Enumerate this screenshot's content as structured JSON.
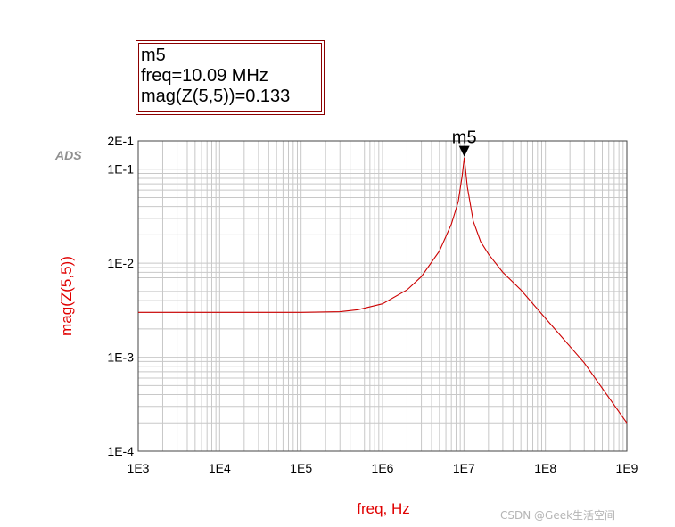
{
  "chart_data": {
    "type": "line",
    "tool_logo": "ADS",
    "xlabel": "freq, Hz",
    "ylabel": "mag(Z(5,5))",
    "x_scale": "log",
    "y_scale": "log",
    "xlim": [
      1000,
      1000000000
    ],
    "ylim": [
      0.0001,
      0.2
    ],
    "grid": true,
    "x_ticks": [
      {
        "value": 1000,
        "label": "1E3"
      },
      {
        "value": 10000,
        "label": "1E4"
      },
      {
        "value": 100000,
        "label": "1E5"
      },
      {
        "value": 1000000,
        "label": "1E6"
      },
      {
        "value": 10000000,
        "label": "1E7"
      },
      {
        "value": 100000000,
        "label": "1E8"
      },
      {
        "value": 1000000000,
        "label": "1E9"
      }
    ],
    "y_ticks": [
      {
        "value": 0.0001,
        "label": "1E-4"
      },
      {
        "value": 0.001,
        "label": "1E-3"
      },
      {
        "value": 0.01,
        "label": "1E-2"
      },
      {
        "value": 0.1,
        "label": "1E-1"
      },
      {
        "value": 0.2,
        "label": "2E-1"
      }
    ],
    "series": [
      {
        "color": "#cc0000",
        "x": [
          1000,
          10000,
          100000,
          300000,
          500000,
          1000000,
          2000000,
          3000000,
          5000000,
          7000000,
          8500000,
          9500000,
          10090000,
          11000000,
          13000000,
          16000000,
          20000000,
          30000000,
          50000000,
          100000000,
          300000000,
          1000000000
        ],
        "y": [
          0.003,
          0.003,
          0.003,
          0.00305,
          0.0032,
          0.0037,
          0.0052,
          0.0072,
          0.0135,
          0.026,
          0.045,
          0.085,
          0.133,
          0.065,
          0.028,
          0.017,
          0.0125,
          0.008,
          0.0052,
          0.0026,
          0.00087,
          0.0002
        ]
      }
    ],
    "marker": {
      "name": "m5",
      "x": 10090000,
      "y": 0.133,
      "readout": [
        "m5",
        "freq=10.09 MHz",
        "mag(Z(5,5))=0.133"
      ]
    }
  },
  "watermark": "CSDN @Geek生活空间",
  "colors": {
    "trace": "#cc0000",
    "axis_label": "#e00000",
    "grid": "#c8c8c8",
    "frame": "#444444",
    "marker_box_border": "#8b0000"
  }
}
